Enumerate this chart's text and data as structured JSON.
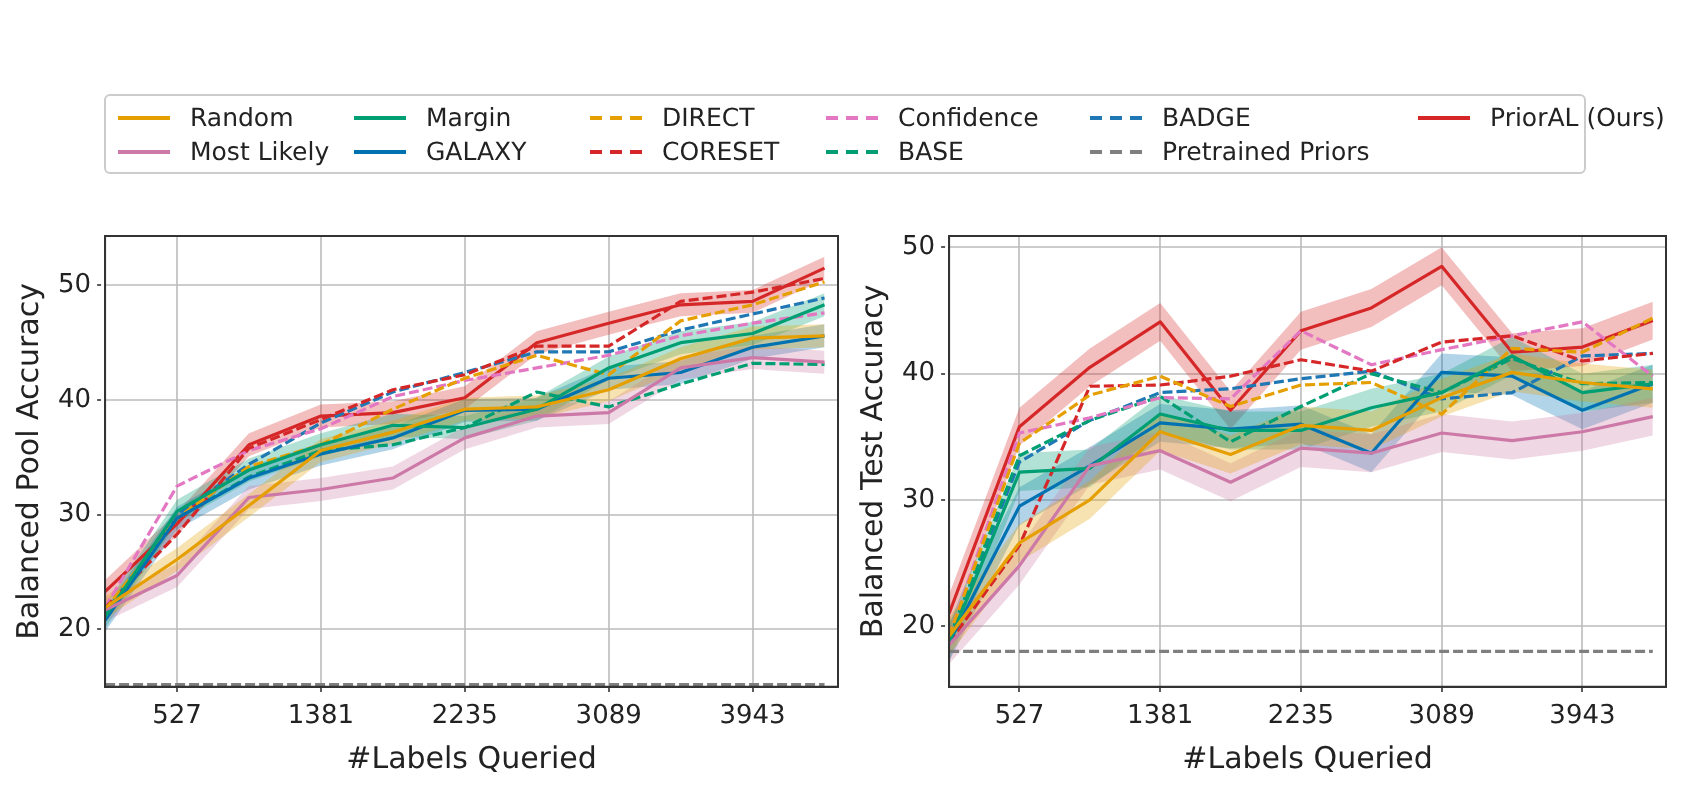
{
  "chart_data": [
    {
      "type": "line",
      "xlabel": "#Labels Queried",
      "ylabel": "Balanced Pool Accuracy",
      "x": [
        100,
        527,
        954,
        1381,
        1808,
        2235,
        2662,
        3089,
        3516,
        3943,
        4370
      ],
      "xlim": [
        100,
        4450
      ],
      "xticks": [
        527,
        1381,
        2235,
        3089,
        3943
      ],
      "ylim": [
        15,
        54.3
      ],
      "yticks": [
        20,
        30,
        40,
        50
      ],
      "grid": true,
      "legend": "top",
      "series": [
        {
          "name": "Random",
          "color": "#e69f00",
          "line_style": "solid",
          "values": [
            21.9,
            26.1,
            30.8,
            35.6,
            37.2,
            39.2,
            39.4,
            40.9,
            43.6,
            45.4,
            45.6
          ],
          "lower": [
            20.9,
            25.1,
            29.8,
            34.6,
            36.2,
            38.2,
            38.4,
            39.9,
            42.6,
            44.4,
            44.6
          ],
          "upper": [
            22.9,
            27.1,
            31.8,
            36.6,
            38.2,
            40.2,
            40.4,
            41.9,
            44.6,
            46.4,
            46.6
          ]
        },
        {
          "name": "Most Likely",
          "color": "#cc79a7",
          "line_style": "solid",
          "values": [
            21.7,
            24.7,
            31.5,
            32.2,
            33.2,
            36.7,
            38.6,
            38.9,
            42.8,
            43.7,
            43.3
          ],
          "lower": [
            20.7,
            23.7,
            30.5,
            31.2,
            32.2,
            35.7,
            37.6,
            37.9,
            41.8,
            42.7,
            42.3
          ],
          "upper": [
            22.7,
            25.7,
            32.5,
            33.2,
            34.2,
            37.7,
            39.6,
            39.9,
            43.8,
            44.7,
            44.3
          ]
        },
        {
          "name": "Margin",
          "color": "#009e73",
          "line_style": "solid",
          "values": [
            21.1,
            30.3,
            33.9,
            36.1,
            37.8,
            37.6,
            39.2,
            42.8,
            45,
            45.8,
            48.3
          ],
          "lower": [
            20.1,
            29.3,
            32.9,
            35.1,
            36.8,
            36.6,
            38.2,
            41.8,
            44,
            44.8,
            47.3
          ],
          "upper": [
            22.1,
            31.3,
            34.9,
            37.1,
            38.8,
            38.6,
            40.2,
            43.8,
            46,
            46.8,
            49.3
          ]
        },
        {
          "name": "GALAXY",
          "color": "#0072b2",
          "line_style": "solid",
          "values": [
            20.8,
            29.7,
            33.2,
            35.3,
            36.7,
            39.1,
            39.2,
            41.9,
            42.4,
            44.6,
            45.6
          ],
          "lower": [
            19.8,
            28.7,
            32.2,
            34.3,
            35.7,
            38.1,
            38.2,
            40.9,
            41.4,
            43.6,
            44.6
          ],
          "upper": [
            21.8,
            30.7,
            34.2,
            36.3,
            37.7,
            40.1,
            40.2,
            42.9,
            43.4,
            45.6,
            46.6
          ]
        },
        {
          "name": "DIRECT",
          "color": "#e69f00",
          "line_style": "dashed",
          "values": [
            21.7,
            29.7,
            34.2,
            36.1,
            39.2,
            41.9,
            43.9,
            42.2,
            46.9,
            48.3,
            50.3
          ]
        },
        {
          "name": "CORESET",
          "color": "#d62728",
          "line_style": "dashed",
          "values": [
            21.9,
            28.3,
            35.8,
            38.3,
            40.9,
            42.2,
            44.7,
            44.7,
            48.6,
            49.4,
            50.6
          ]
        },
        {
          "name": "Confidence",
          "color": "#e377c2",
          "line_style": "dashed",
          "values": [
            21.9,
            32.5,
            35.6,
            37.5,
            40.3,
            41.7,
            42.8,
            43.9,
            45.6,
            46.7,
            47.6
          ]
        },
        {
          "name": "BASE",
          "color": "#009e73",
          "line_style": "dashed",
          "values": [
            21.4,
            29.7,
            33.3,
            35.6,
            36.1,
            37.6,
            40.7,
            39.4,
            41.4,
            43.2,
            43.1
          ]
        },
        {
          "name": "BADGE",
          "color": "#1f77b4",
          "line_style": "dashed",
          "values": [
            21.4,
            30,
            34.4,
            38,
            40.7,
            42.4,
            44.2,
            44.2,
            46.1,
            47.5,
            48.9
          ]
        },
        {
          "name": "Pretrained Priors",
          "color": "#7f7f7f",
          "line_style": "dashed",
          "values": [
            15.2,
            15.2,
            15.2,
            15.2,
            15.2,
            15.2,
            15.2,
            15.2,
            15.2,
            15.2,
            15.2
          ]
        },
        {
          "name": "PriorAL (Ours)",
          "color": "#d62728",
          "line_style": "solid",
          "values": [
            23.3,
            29.2,
            36.1,
            38.6,
            38.9,
            40.2,
            45,
            46.7,
            48.3,
            48.6,
            51.5
          ],
          "lower": [
            22.3,
            28.2,
            35.1,
            37.6,
            37.9,
            39.2,
            44,
            45.7,
            47.3,
            47.6,
            50.5
          ],
          "upper": [
            24.3,
            30.2,
            37.1,
            39.6,
            39.9,
            41.2,
            46,
            47.7,
            49.3,
            49.6,
            52.5
          ]
        }
      ]
    },
    {
      "type": "line",
      "xlabel": "#Labels Queried",
      "ylabel": "Balanced Test Accuracy",
      "x": [
        100,
        527,
        954,
        1381,
        1808,
        2235,
        2662,
        3089,
        3516,
        3943,
        4370
      ],
      "xlim": [
        100,
        4450
      ],
      "xticks": [
        527,
        1381,
        2235,
        3089,
        3943
      ],
      "ylim": [
        15.2,
        50.9
      ],
      "yticks": [
        20,
        30,
        40,
        50
      ],
      "grid": true,
      "series": [
        {
          "color": "#e69f00",
          "line_style": "solid",
          "values": [
            19.2,
            26.6,
            30,
            35.4,
            33.6,
            35.9,
            35.5,
            38.1,
            40.1,
            39.3,
            38.8
          ],
          "lower": [
            17.7,
            25.1,
            28.5,
            33.9,
            32.1,
            34.4,
            34,
            36.6,
            38.6,
            37.8,
            37.3
          ],
          "upper": [
            20.7,
            28.1,
            31.5,
            36.9,
            35.1,
            37.4,
            37,
            39.6,
            41.6,
            40.8,
            40.3
          ]
        },
        {
          "color": "#cc79a7",
          "line_style": "solid",
          "values": [
            18.5,
            24.8,
            32.7,
            33.9,
            31.4,
            34.1,
            33.7,
            35.3,
            34.7,
            35.4,
            36.6
          ],
          "lower": [
            17,
            23.3,
            31.2,
            32.4,
            29.9,
            32.6,
            32.2,
            33.8,
            33.2,
            33.9,
            35.1
          ],
          "upper": [
            20,
            26.3,
            34.2,
            35.4,
            32.9,
            35.6,
            35.2,
            36.8,
            36.2,
            36.9,
            38.1
          ]
        },
        {
          "color": "#009e73",
          "line_style": "solid",
          "values": [
            18.7,
            32.2,
            32.5,
            36.8,
            35.5,
            35.5,
            37.3,
            38.5,
            41.4,
            38.5,
            39.2
          ],
          "lower": [
            17.2,
            30.7,
            31,
            35.3,
            34,
            34,
            35.8,
            37,
            39.9,
            37,
            37.7
          ],
          "upper": [
            20.2,
            33.7,
            34,
            38.3,
            37,
            37,
            38.8,
            40,
            42.9,
            40,
            40.7
          ]
        },
        {
          "color": "#0072b2",
          "line_style": "solid",
          "values": [
            18.7,
            29.5,
            32.7,
            36.1,
            35.6,
            36,
            33.7,
            40.1,
            39.8,
            37.1,
            39.2
          ],
          "lower": [
            17.2,
            28,
            31.2,
            34.6,
            34.1,
            34.5,
            32.2,
            38.6,
            38.3,
            35.6,
            37.7
          ],
          "upper": [
            20.2,
            31,
            34.2,
            37.6,
            37.1,
            37.5,
            35.2,
            41.6,
            41.3,
            38.6,
            40.7
          ]
        },
        {
          "color": "#e69f00",
          "line_style": "dashed",
          "values": [
            19.2,
            34.5,
            38.3,
            39.8,
            37.4,
            39.1,
            39.3,
            36.8,
            42,
            41.7,
            44.4
          ]
        },
        {
          "color": "#d62728",
          "line_style": "dashed",
          "values": [
            18.7,
            26.4,
            39,
            39.1,
            39.8,
            41.1,
            40.2,
            42.5,
            43,
            41,
            41.6
          ]
        },
        {
          "color": "#e377c2",
          "line_style": "dashed",
          "values": [
            19.2,
            35.3,
            36.5,
            38.1,
            38,
            43.4,
            40.7,
            41.9,
            43,
            44.1,
            39.8
          ]
        },
        {
          "color": "#009e73",
          "line_style": "dashed",
          "values": [
            19,
            33.5,
            36.3,
            38.2,
            34.6,
            37.4,
            40,
            38.5,
            41.2,
            39.2,
            39.3
          ]
        },
        {
          "color": "#1f77b4",
          "line_style": "dashed",
          "values": [
            19,
            33,
            36.3,
            38.5,
            38.8,
            39.6,
            40.2,
            38,
            38.5,
            41.4,
            41.6
          ]
        },
        {
          "color": "#7f7f7f",
          "line_style": "dashed",
          "values": [
            18,
            18,
            18,
            18,
            18,
            18,
            18,
            18,
            18,
            18,
            18
          ]
        },
        {
          "color": "#d62728",
          "line_style": "solid",
          "values": [
            21,
            35.8,
            40.5,
            44.1,
            37.1,
            43.4,
            45.2,
            48.5,
            41.7,
            42.1,
            44.2
          ],
          "lower": [
            19.5,
            34.3,
            39,
            42.6,
            35.6,
            41.9,
            43.7,
            47,
            40.2,
            40.6,
            42.7
          ],
          "upper": [
            22.5,
            37.3,
            42,
            45.6,
            38.6,
            44.9,
            46.7,
            50,
            43.2,
            43.6,
            45.7
          ]
        }
      ]
    }
  ]
}
